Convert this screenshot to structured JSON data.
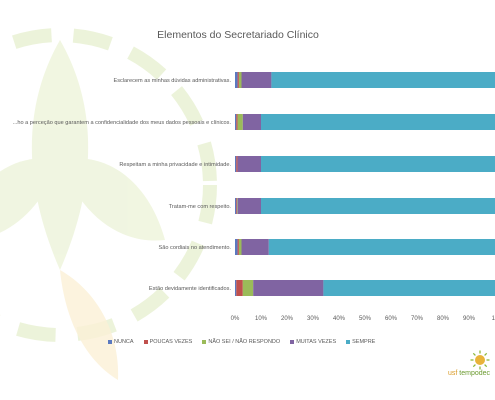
{
  "chart_data": {
    "type": "bar",
    "orientation": "horizontal",
    "stacked": "percent",
    "title": "Elementos do Secretariado Clínico",
    "categories": [
      "Esclarecem as minhas dúvidas administrativas.",
      "...ho a perceção que garantem a confidencialidade dos meus dados pessoais e clínicos.",
      "Respeitam a minha privacidade e intimidade.",
      "Tratam-me com respeito.",
      "São cordiais no atendimento.",
      "Estão devidamente identificados."
    ],
    "series": [
      {
        "name": "NUNCA",
        "color": "#5b79c0",
        "values": [
          1.0,
          0.5,
          0.5,
          0.5,
          1.0,
          0.5
        ]
      },
      {
        "name": "POUCAS VEZES",
        "color": "#c0504d",
        "values": [
          0.5,
          0.5,
          0.5,
          0.3,
          0.5,
          2.5
        ]
      },
      {
        "name": "NÃO SEI / NÃO RESPONDO",
        "color": "#9bbb59",
        "values": [
          1.0,
          2.0,
          0.0,
          0.2,
          1.0,
          4.0
        ]
      },
      {
        "name": "MUITAS VEZES",
        "color": "#8064a2",
        "values": [
          11.5,
          7.0,
          9.0,
          9.0,
          10.5,
          27.0
        ]
      },
      {
        "name": "SEMPRE",
        "color": "#4bacc6",
        "values": [
          86.0,
          90.0,
          90.0,
          90.0,
          87.0,
          66.0
        ]
      }
    ],
    "x_ticks": [
      "0%",
      "10%",
      "20%",
      "30%",
      "40%",
      "50%",
      "60%",
      "70%",
      "80%",
      "90%",
      "10"
    ],
    "xlim": [
      0,
      100
    ],
    "legend_position": "bottom",
    "grid": false
  },
  "logo": {
    "prefix": "usf",
    "name": "tempodec"
  }
}
